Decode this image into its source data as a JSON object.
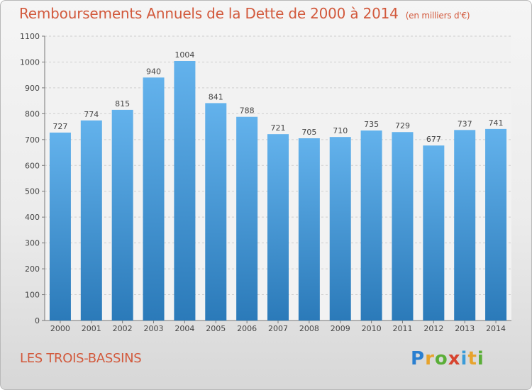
{
  "header": {
    "title": "Remboursements Annuels de la Dette de 2000 à 2014",
    "unit": "(en milliers d'€)"
  },
  "footer": {
    "commune": "LES TROIS-BASSINS",
    "logo": "Proxiti"
  },
  "colors": {
    "title": "#d2593c",
    "bar_top": "#63b2ec",
    "bar_bottom": "#2b7ab9"
  },
  "chart_data": {
    "type": "bar",
    "title": "Remboursements Annuels de la Dette de 2000 à 2014",
    "subtitle": "(en milliers d'€)",
    "categories": [
      "2000",
      "2001",
      "2002",
      "2003",
      "2004",
      "2005",
      "2006",
      "2007",
      "2008",
      "2009",
      "2010",
      "2011",
      "2012",
      "2013",
      "2014"
    ],
    "values": [
      727,
      774,
      815,
      940,
      1004,
      841,
      788,
      721,
      705,
      710,
      735,
      729,
      677,
      737,
      741
    ],
    "ylim": [
      0,
      1100
    ],
    "yticks": [
      0,
      100,
      200,
      300,
      400,
      500,
      600,
      700,
      800,
      900,
      1000,
      1100
    ],
    "grid": true
  }
}
